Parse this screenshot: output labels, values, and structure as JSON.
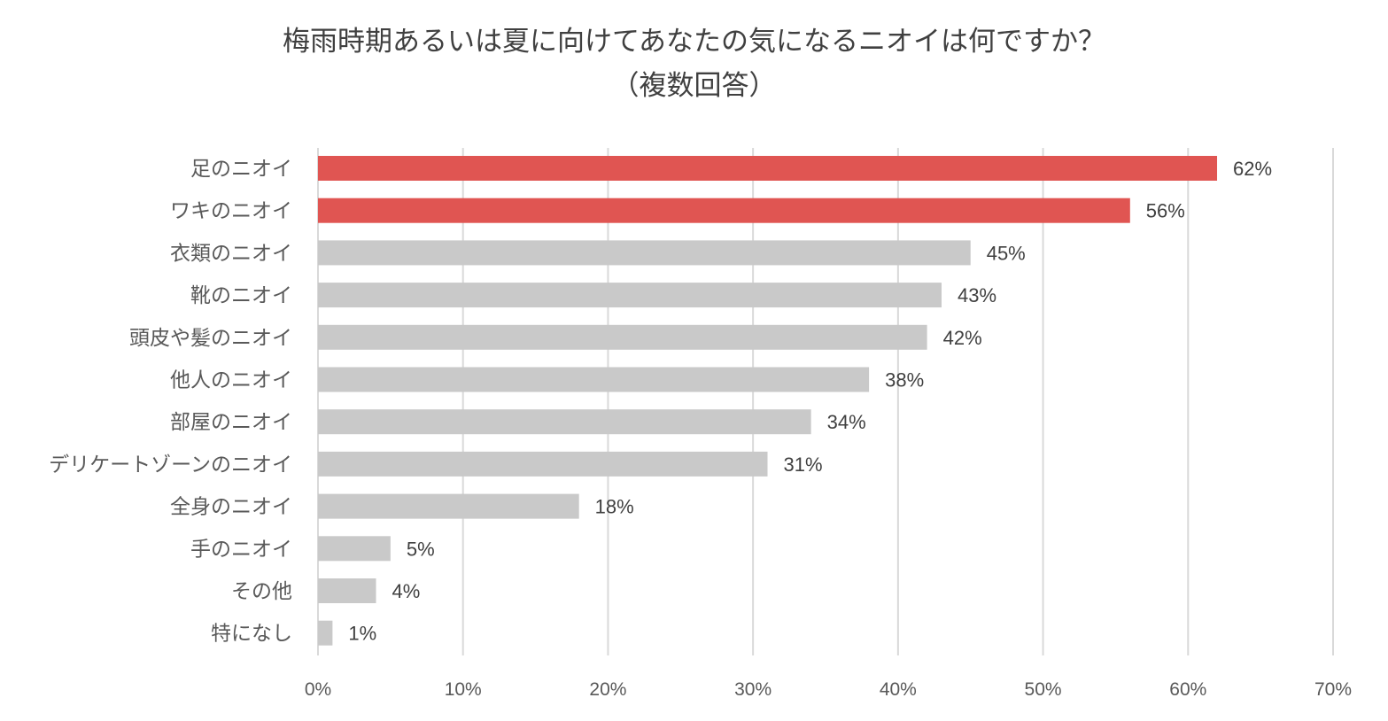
{
  "chart_data": {
    "type": "bar",
    "orientation": "horizontal",
    "title_line1": "梅雨時期あるいは夏に向けてあなたの気になるニオイは何ですか？",
    "title_line2": "（複数回答）",
    "categories": [
      "足のニオイ",
      "ワキのニオイ",
      "衣類のニオイ",
      "靴のニオイ",
      "頭皮や髪のニオイ",
      "他人のニオイ",
      "部屋のニオイ",
      "デリケートゾーンのニオイ",
      "全身のニオイ",
      "手のニオイ",
      "その他",
      "特になし"
    ],
    "values": [
      62,
      56,
      45,
      43,
      42,
      38,
      34,
      31,
      18,
      5,
      4,
      1
    ],
    "value_labels": [
      "62%",
      "56%",
      "45%",
      "43%",
      "42%",
      "38%",
      "34%",
      "31%",
      "18%",
      "5%",
      "4%",
      "1%"
    ],
    "xlim": [
      0,
      70
    ],
    "x_ticks": [
      0,
      10,
      20,
      30,
      40,
      50,
      60,
      70
    ],
    "x_tick_labels": [
      "0%",
      "10%",
      "20%",
      "30%",
      "40%",
      "50%",
      "60%",
      "70%"
    ],
    "grid": "vertical",
    "highlight_count": 2,
    "colors": {
      "highlight": "#e05552",
      "default": "#c9c9c9",
      "grid": "#d9d9d9"
    }
  }
}
